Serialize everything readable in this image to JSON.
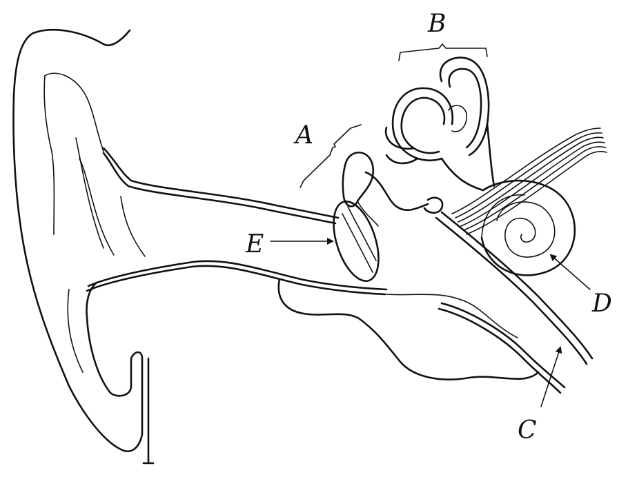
{
  "labels": {
    "a": "A",
    "b": "B",
    "c": "C",
    "d": "D",
    "e": "E"
  },
  "colors": {
    "ink": "#111111",
    "background": "#ffffff"
  }
}
